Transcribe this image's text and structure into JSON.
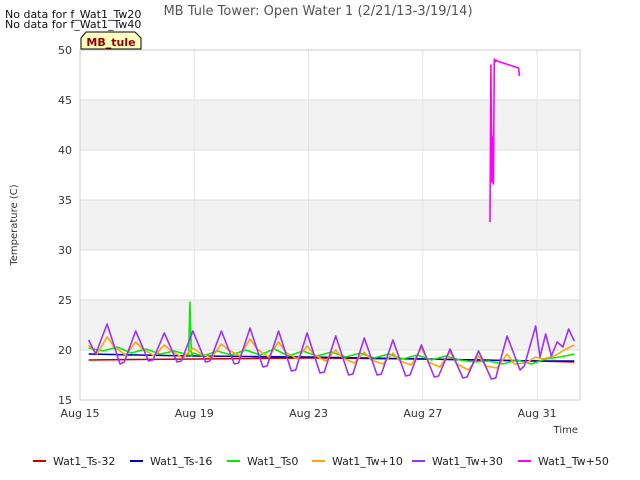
{
  "no_data_notes": [
    "No data for f_Wat1_Tw20",
    "No data for f_Wat1_Tw40"
  ],
  "site_tag": "MB_tule",
  "chart_data": {
    "type": "line",
    "title": "MB Tule Tower: Open Water 1 (2/21/13-3/19/14)",
    "xlabel": "Time",
    "ylabel": "Temperature (C)",
    "xlim": [
      15,
      32.5
    ],
    "ylim": [
      15,
      50
    ],
    "x_unit": "day of August",
    "x_ticks": [
      15,
      19,
      23,
      27,
      31
    ],
    "x_tick_labels": [
      "Aug 15",
      "Aug 19",
      "Aug 23",
      "Aug 27",
      "Aug 31"
    ],
    "y_ticks": [
      15,
      20,
      25,
      30,
      35,
      40,
      45,
      50
    ],
    "y_tick_labels": [
      "15",
      "20",
      "25",
      "30",
      "35",
      "40",
      "45",
      "50"
    ],
    "grid": true,
    "legend_position": "bottom",
    "series": [
      {
        "name": "Wat1_Ts-32",
        "color": "#cc0000",
        "x": [
          15.3,
          17.0,
          19.0,
          21.0,
          23.0,
          25.0,
          27.0,
          29.0,
          31.0,
          32.3
        ],
        "y": [
          19.0,
          19.05,
          19.1,
          19.15,
          19.2,
          19.15,
          19.1,
          19.0,
          18.9,
          18.8
        ]
      },
      {
        "name": "Wat1_Ts-16",
        "color": "#0000bb",
        "x": [
          15.3,
          17.0,
          19.0,
          21.0,
          23.0,
          25.0,
          27.0,
          29.0,
          31.0,
          32.3
        ],
        "y": [
          19.6,
          19.5,
          19.4,
          19.35,
          19.3,
          19.2,
          19.1,
          19.0,
          18.9,
          18.9
        ]
      },
      {
        "name": "Wat1_Ts0",
        "color": "#00ee00",
        "x": [
          15.3,
          15.8,
          16.3,
          16.8,
          17.3,
          17.8,
          18.3,
          18.8,
          18.85,
          18.9,
          18.95,
          19.3,
          19.8,
          20.3,
          20.8,
          21.3,
          21.8,
          22.3,
          22.8,
          23.3,
          23.8,
          24.3,
          24.8,
          25.3,
          25.8,
          26.3,
          26.8,
          27.3,
          27.8,
          28.3,
          28.8,
          29.3,
          29.8,
          30.3,
          30.8,
          31.3,
          31.8,
          32.3
        ],
        "y": [
          20.2,
          19.9,
          20.3,
          19.7,
          20.1,
          19.6,
          19.9,
          19.5,
          24.8,
          19.4,
          19.7,
          19.4,
          19.9,
          19.5,
          20.0,
          19.5,
          20.1,
          19.4,
          19.9,
          19.4,
          19.8,
          19.3,
          19.7,
          19.2,
          19.6,
          19.1,
          19.5,
          19.0,
          19.4,
          19.0,
          18.8,
          18.9,
          18.6,
          19.0,
          18.6,
          19.1,
          19.3,
          19.6
        ]
      },
      {
        "name": "Wat1_Tw+10",
        "color": "#ffa500",
        "x": [
          15.3,
          15.6,
          15.95,
          16.2,
          16.6,
          16.95,
          17.2,
          17.6,
          17.95,
          18.2,
          18.6,
          18.95,
          19.2,
          19.6,
          19.95,
          20.2,
          20.6,
          20.95,
          21.2,
          21.6,
          21.95,
          22.2,
          22.6,
          22.95,
          23.2,
          23.6,
          23.95,
          24.2,
          24.6,
          24.95,
          25.2,
          25.6,
          25.95,
          26.2,
          26.6,
          26.95,
          27.2,
          27.6,
          27.95,
          28.2,
          28.6,
          28.95,
          29.2,
          29.6,
          29.95,
          30.2,
          30.6,
          30.95,
          31.2,
          31.6,
          31.95,
          32.3
        ],
        "y": [
          20.5,
          19.6,
          21.3,
          20.3,
          19.5,
          20.8,
          20.1,
          19.4,
          20.5,
          19.9,
          19.2,
          20.2,
          19.7,
          19.2,
          20.6,
          20.0,
          19.4,
          21.1,
          20.1,
          19.3,
          20.8,
          19.8,
          19.1,
          20.4,
          19.5,
          18.9,
          20.0,
          19.2,
          18.7,
          19.8,
          19.0,
          18.6,
          19.7,
          18.9,
          18.5,
          20.2,
          18.8,
          18.3,
          19.8,
          18.6,
          18.0,
          19.4,
          18.4,
          18.2,
          19.6,
          18.6,
          18.7,
          19.3,
          19.1,
          19.4,
          20.0,
          20.5
        ]
      },
      {
        "name": "Wat1_Tw+30",
        "color": "#9b30ff",
        "x": [
          15.3,
          15.55,
          15.95,
          16.4,
          16.55,
          16.95,
          17.4,
          17.55,
          17.95,
          18.4,
          18.55,
          18.95,
          19.4,
          19.55,
          19.95,
          20.4,
          20.55,
          20.95,
          21.4,
          21.55,
          21.95,
          22.4,
          22.55,
          22.95,
          23.4,
          23.55,
          23.95,
          24.4,
          24.55,
          24.95,
          25.4,
          25.55,
          25.95,
          26.4,
          26.55,
          26.95,
          27.4,
          27.55,
          27.95,
          28.4,
          28.55,
          28.95,
          29.4,
          29.55,
          29.95,
          30.4,
          30.55,
          30.95,
          31.1,
          31.3,
          31.5,
          31.7,
          31.9,
          32.1,
          32.3
        ],
        "y": [
          21.0,
          19.6,
          22.6,
          18.6,
          18.8,
          21.9,
          18.9,
          19.0,
          21.7,
          18.8,
          18.9,
          21.9,
          18.8,
          18.9,
          21.9,
          18.6,
          18.7,
          22.2,
          18.3,
          18.4,
          21.9,
          17.9,
          18.0,
          21.7,
          17.7,
          17.8,
          21.4,
          17.5,
          17.6,
          21.2,
          17.5,
          17.6,
          21.0,
          17.4,
          17.5,
          20.5,
          17.3,
          17.4,
          20.1,
          17.2,
          17.3,
          19.9,
          17.1,
          17.2,
          21.4,
          18.0,
          18.4,
          22.4,
          19.3,
          21.6,
          19.4,
          20.8,
          20.3,
          22.1,
          20.9
        ]
      },
      {
        "name": "Wat1_Tw+50",
        "color": "#ff00ff",
        "x": [
          29.35,
          29.38,
          29.41,
          29.44,
          29.47,
          29.5,
          29.53,
          29.56,
          29.6,
          30.35,
          30.38
        ],
        "y": [
          32.8,
          48.5,
          36.8,
          41.3,
          36.6,
          49.1,
          48.8,
          49.0,
          48.9,
          48.2,
          47.4
        ]
      }
    ]
  }
}
